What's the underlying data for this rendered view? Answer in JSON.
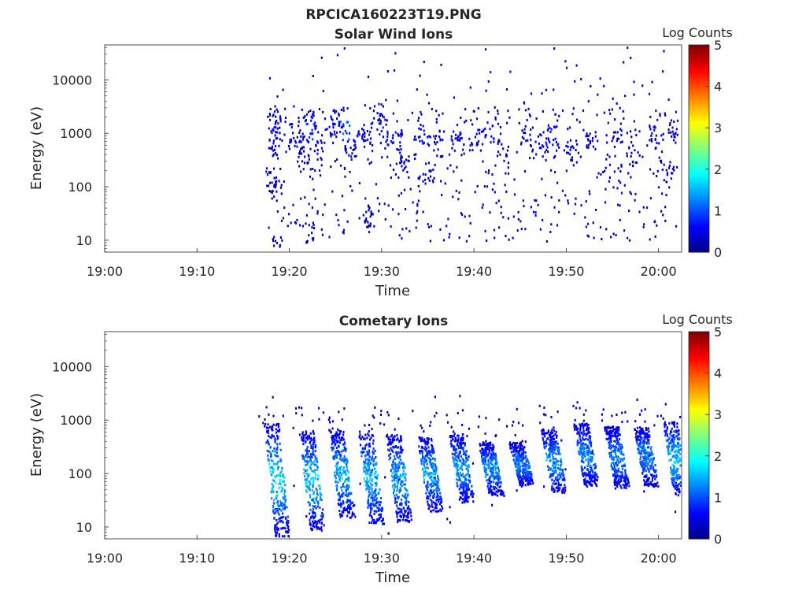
{
  "figure": {
    "title": "RPCICA160223T19.PNG"
  },
  "chart_data": [
    {
      "type": "heatmap",
      "title": "Solar Wind Ions",
      "xlabel": "Time",
      "ylabel": "Energy (eV)",
      "x_ticks": [
        "19:00",
        "19:10",
        "19:20",
        "19:30",
        "19:40",
        "19:50",
        "20:00"
      ],
      "y_ticks": [
        "10",
        "100",
        "1000",
        "10000"
      ],
      "y_scale": "log",
      "xlim_minutes": [
        0,
        62.5
      ],
      "ylim": [
        6,
        45000
      ],
      "colorbar": {
        "label": "Log Counts",
        "ticks": [
          "0",
          "1",
          "2",
          "3",
          "4",
          "5"
        ],
        "range": [
          0,
          5
        ],
        "colormap": "jet"
      },
      "data_start_minute": 17.5,
      "clusters": [
        {
          "t": 18.3,
          "e": 1200,
          "v": 0.6
        },
        {
          "t": 18.4,
          "e": 2400,
          "v": 0.4
        },
        {
          "t": 18.2,
          "e": 600,
          "v": 0.5
        },
        {
          "t": 18.0,
          "e": 150,
          "v": 0.5
        },
        {
          "t": 18.5,
          "e": 90,
          "v": 0.3
        },
        {
          "t": 18.7,
          "e": 8,
          "v": 0.3
        },
        {
          "t": 20.5,
          "e": 1100,
          "v": 0.4
        },
        {
          "t": 21.0,
          "e": 700,
          "v": 0.4
        },
        {
          "t": 21.5,
          "e": 400,
          "v": 0.5
        },
        {
          "t": 22.0,
          "e": 2400,
          "v": 0.5
        },
        {
          "t": 22.3,
          "e": 1100,
          "v": 0.8
        },
        {
          "t": 22.0,
          "e": 15,
          "v": 0.3
        },
        {
          "t": 23.2,
          "e": 500,
          "v": 0.4
        },
        {
          "t": 24.5,
          "e": 1300,
          "v": 0.6
        },
        {
          "t": 25.2,
          "e": 2100,
          "v": 0.4
        },
        {
          "t": 26.0,
          "e": 1100,
          "v": 1.0
        },
        {
          "t": 26.5,
          "e": 500,
          "v": 0.4
        },
        {
          "t": 27.5,
          "e": 800,
          "v": 0.5
        },
        {
          "t": 28.3,
          "e": 1000,
          "v": 0.5
        },
        {
          "t": 28.5,
          "e": 30,
          "v": 0.3
        },
        {
          "t": 29.6,
          "e": 2400,
          "v": 0.4
        },
        {
          "t": 30.0,
          "e": 1200,
          "v": 0.7
        },
        {
          "t": 31.5,
          "e": 800,
          "v": 0.6
        },
        {
          "t": 32.5,
          "e": 300,
          "v": 0.4
        },
        {
          "t": 34.5,
          "e": 1000,
          "v": 0.6
        },
        {
          "t": 35.0,
          "e": 180,
          "v": 0.5
        },
        {
          "t": 36.0,
          "e": 600,
          "v": 0.4
        },
        {
          "t": 38.0,
          "e": 700,
          "v": 0.5
        },
        {
          "t": 40.0,
          "e": 800,
          "v": 0.5
        },
        {
          "t": 41.5,
          "e": 1000,
          "v": 0.6
        },
        {
          "t": 43.0,
          "e": 500,
          "v": 0.4
        },
        {
          "t": 45.5,
          "e": 900,
          "v": 0.5
        },
        {
          "t": 47.5,
          "e": 800,
          "v": 0.6
        },
        {
          "t": 48.5,
          "e": 1000,
          "v": 0.6
        },
        {
          "t": 50.5,
          "e": 500,
          "v": 0.4
        },
        {
          "t": 52.5,
          "e": 900,
          "v": 0.5
        },
        {
          "t": 55.5,
          "e": 900,
          "v": 0.4
        },
        {
          "t": 57.0,
          "e": 400,
          "v": 0.4
        },
        {
          "t": 59.5,
          "e": 1000,
          "v": 0.5
        },
        {
          "t": 61.5,
          "e": 1200,
          "v": 0.5
        },
        {
          "t": 61.0,
          "e": 200,
          "v": 0.4
        }
      ]
    },
    {
      "type": "heatmap",
      "title": "Cometary Ions",
      "xlabel": "Time",
      "ylabel": "Energy (eV)",
      "x_ticks": [
        "19:00",
        "19:10",
        "19:20",
        "19:30",
        "19:40",
        "19:50",
        "20:00"
      ],
      "y_ticks": [
        "10",
        "100",
        "1000",
        "10000"
      ],
      "y_scale": "log",
      "xlim_minutes": [
        0,
        62.5
      ],
      "ylim": [
        6,
        45000
      ],
      "colorbar": {
        "label": "Log Counts",
        "ticks": [
          "0",
          "1",
          "2",
          "3",
          "4",
          "5"
        ],
        "range": [
          0,
          5
        ],
        "colormap": "jet"
      },
      "data_start_minute": 17.5,
      "bursts": [
        {
          "t": 18.0,
          "e_top": 900,
          "e_bot": 7,
          "v": 1.4
        },
        {
          "t": 21.8,
          "e_top": 650,
          "e_bot": 9,
          "v": 1.3
        },
        {
          "t": 25.0,
          "e_top": 700,
          "e_bot": 15,
          "v": 1.2
        },
        {
          "t": 28.2,
          "e_top": 600,
          "e_bot": 12,
          "v": 1.2
        },
        {
          "t": 31.2,
          "e_top": 550,
          "e_bot": 13,
          "v": 1.1
        },
        {
          "t": 34.6,
          "e_top": 500,
          "e_bot": 20,
          "v": 1.1
        },
        {
          "t": 38.0,
          "e_top": 600,
          "e_bot": 30,
          "v": 1.0
        },
        {
          "t": 41.2,
          "e_top": 400,
          "e_bot": 40,
          "v": 1.0
        },
        {
          "t": 44.5,
          "e_top": 400,
          "e_bot": 60,
          "v": 0.9
        },
        {
          "t": 48.0,
          "e_top": 700,
          "e_bot": 45,
          "v": 1.0
        },
        {
          "t": 51.5,
          "e_top": 900,
          "e_bot": 60,
          "v": 0.9
        },
        {
          "t": 54.8,
          "e_top": 800,
          "e_bot": 55,
          "v": 0.9
        },
        {
          "t": 58.0,
          "e_top": 800,
          "e_bot": 60,
          "v": 0.9
        },
        {
          "t": 61.2,
          "e_top": 1000,
          "e_bot": 40,
          "v": 1.3
        }
      ]
    }
  ]
}
